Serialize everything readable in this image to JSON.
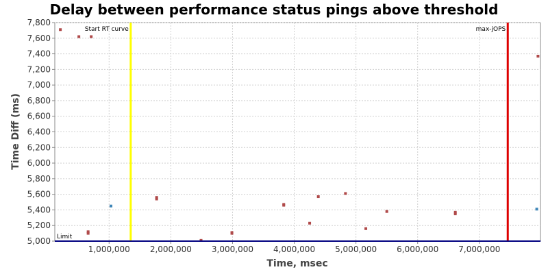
{
  "chart_data": {
    "type": "scatter",
    "title": "Delay between performance status pings above threshold",
    "xlabel": "Time, msec",
    "ylabel": "Time Diff (ms)",
    "xlim": [
      120000,
      7990000
    ],
    "ylim": [
      5000,
      7800
    ],
    "x_ticks": [
      1000000,
      2000000,
      3000000,
      4000000,
      5000000,
      6000000,
      7000000
    ],
    "x_tick_labels": [
      "1,000,000",
      "2,000,000",
      "3,000,000",
      "4,000,000",
      "5,000,000",
      "6,000,000",
      "7,000,000"
    ],
    "y_ticks": [
      5000,
      5200,
      5400,
      5600,
      5800,
      6000,
      6200,
      6400,
      6600,
      6800,
      7000,
      7200,
      7400,
      7600,
      7800
    ],
    "y_tick_labels": [
      "5,000",
      "5,200",
      "5,400",
      "5,600",
      "5,800",
      "6,000",
      "6,200",
      "6,400",
      "6,600",
      "6,800",
      "7,000",
      "7,200",
      "7,400",
      "7,600",
      "7,800"
    ],
    "grid": true,
    "series": [
      {
        "color": "#b04a4a",
        "points": [
          [
            210000,
            7710
          ],
          [
            510000,
            7620
          ],
          [
            710000,
            7620
          ],
          [
            660000,
            5120
          ],
          [
            660000,
            5100
          ],
          [
            1770000,
            5560
          ],
          [
            1770000,
            5540
          ],
          [
            2490000,
            5010
          ],
          [
            2990000,
            5110
          ],
          [
            2990000,
            5100
          ],
          [
            3830000,
            5470
          ],
          [
            3830000,
            5460
          ],
          [
            4250000,
            5230
          ],
          [
            4390000,
            5570
          ],
          [
            4830000,
            5610
          ],
          [
            5160000,
            5160
          ],
          [
            5500000,
            5380
          ],
          [
            6610000,
            5370
          ],
          [
            6610000,
            5350
          ],
          [
            7950000,
            7370
          ]
        ]
      },
      {
        "color": "#3f86b8",
        "points": [
          [
            1030000,
            5450
          ],
          [
            7930000,
            5410
          ]
        ]
      }
    ],
    "markers": [
      {
        "label": "Start RT curve",
        "x": 1350000,
        "color": "#ffff00"
      },
      {
        "label": "max-jOPS",
        "x": 7460000,
        "color": "#dd0000"
      }
    ],
    "limit": {
      "label": "Limit",
      "y": 5000,
      "color": "#000080"
    }
  }
}
